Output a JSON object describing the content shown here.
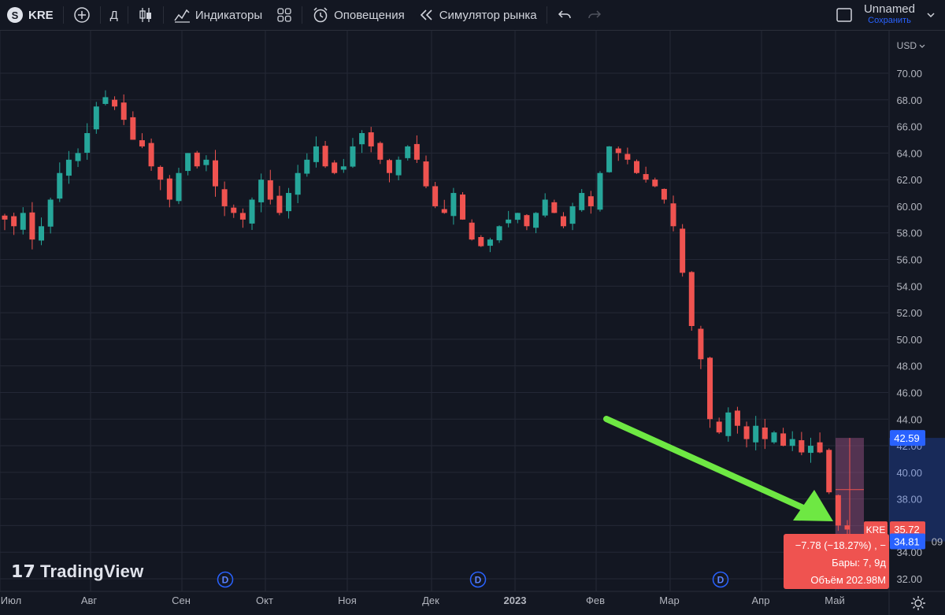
{
  "toolbar": {
    "symbol_logo": "S",
    "symbol": "KRE",
    "add_icon": "plus-circle-icon",
    "interval": "Д",
    "chart_type_icon": "candles-icon",
    "indicators_label": "Индикаторы",
    "templates_icon": "grid-icon",
    "alerts_label": "Оповещения",
    "replay_label": "Симулятор рынка",
    "undo_icon": "undo-icon",
    "redo_icon": "redo-icon",
    "layout_name": "Unnamed",
    "save_label": "Сохранить"
  },
  "watermark": "TradingView",
  "currency": "USD",
  "colors": {
    "up": "#26a69a",
    "down": "#ef5350",
    "accent": "#2962ff",
    "arrow": "#6ee843",
    "background": "#131722",
    "grid": "#242836"
  },
  "chart_data": {
    "type": "candlestick",
    "symbol": "KRE",
    "interval": "1D",
    "ylim": [
      31.2,
      71.5
    ],
    "y_ticks": [
      32,
      34,
      36,
      38,
      40,
      42,
      44,
      46,
      48,
      50,
      52,
      54,
      56,
      58,
      60,
      62,
      64,
      66,
      68,
      70
    ],
    "x_labels": [
      "Июл",
      "Авг",
      "Сен",
      "Окт",
      "Ноя",
      "Дек",
      "2023",
      "Фев",
      "Мар",
      "Апр",
      "Май"
    ],
    "dividend_markers": [
      "D",
      "D",
      "D"
    ],
    "price_labels": {
      "current": "35.72",
      "symbol": "KRE",
      "range_high": "42.59",
      "range_low": "34.81",
      "hidden_suffix": "09"
    },
    "measure_tooltip": {
      "change": "−7.78 (−18.27%) , −",
      "bars": "Бары: 7, 9д",
      "volume": "Объём 202.98M"
    },
    "close_path": [
      59.0,
      58.5,
      59.5,
      57.5,
      58.5,
      60.5,
      62.5,
      63.5,
      64.0,
      65.5,
      67.5,
      68.2,
      67.5,
      66.5,
      65.0,
      64.5,
      63.0,
      62.0,
      60.5,
      62.5,
      64.0,
      63.0,
      63.5,
      61.5,
      60.0,
      59.5,
      59.0,
      60.5,
      62.0,
      60.5,
      59.5,
      61.0,
      62.5,
      63.5,
      64.5,
      63.0,
      62.5,
      63.0,
      64.5,
      65.5,
      64.5,
      63.5,
      62.5,
      63.5,
      64.5,
      63.5,
      61.5,
      60.0,
      59.5,
      61.0,
      59.0,
      57.5,
      57.0,
      57.5,
      58.5,
      59.0,
      59.5,
      58.5,
      59.5,
      60.5,
      59.5,
      58.5,
      60.0,
      61.0,
      60.0,
      62.5,
      64.5,
      64.0,
      63.5,
      62.5,
      62.0,
      61.5,
      60.5,
      58.5,
      55.0,
      51.0,
      48.5,
      44.0,
      43.0,
      44.5,
      43.5,
      42.5,
      43.5,
      42.5,
      43.0,
      42.0,
      42.5,
      41.5,
      42.0,
      41.5,
      38.5,
      36.0,
      35.7
    ]
  }
}
